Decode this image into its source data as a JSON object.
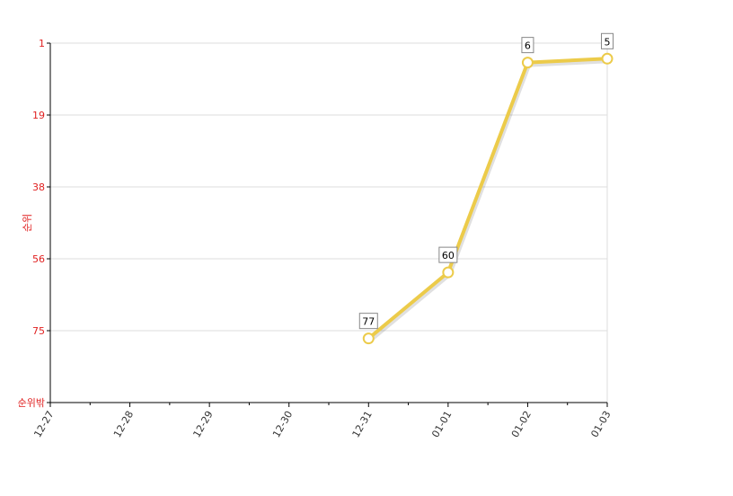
{
  "chart_data": {
    "type": "line",
    "y_label": "순위",
    "categories": [
      "12-27",
      "12-28",
      "12-29",
      "12-30",
      "12-31",
      "01-01",
      "01-02",
      "01-03"
    ],
    "values": [
      null,
      null,
      null,
      null,
      77,
      60,
      6,
      5
    ],
    "color": "#eccb4a",
    "ylim": [
      1,
      93.5
    ],
    "y_inverted": true,
    "yticks": [
      1,
      {
        "value": 19.5,
        "label": "19"
      },
      38,
      {
        "value": 56.5,
        "label": "56"
      },
      75,
      {
        "value": 93.5,
        "label": "순위밖"
      }
    ],
    "grid": true,
    "data_labels": true
  }
}
